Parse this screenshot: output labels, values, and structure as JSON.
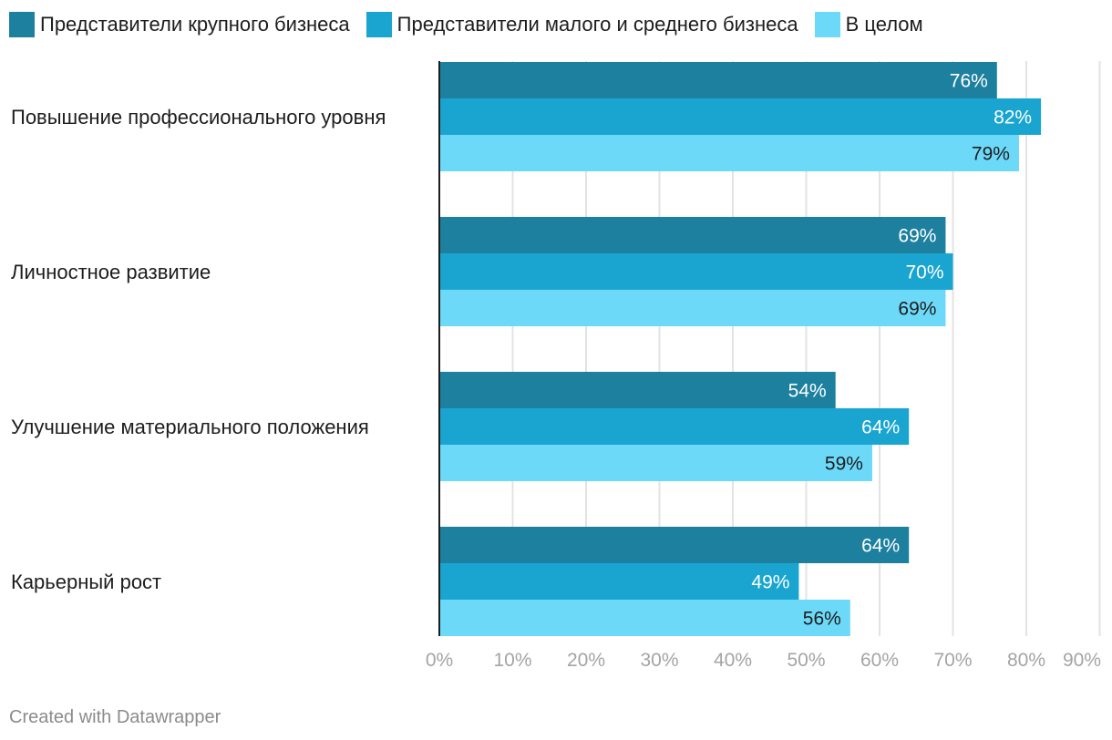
{
  "chart_data": {
    "type": "bar",
    "orientation": "horizontal",
    "categories": [
      "Повышение профессионального уровня",
      "Личностное развитие",
      "Улучшение материального положения",
      "Карьерный рост"
    ],
    "series": [
      {
        "name": "Представители крупного бизнеса",
        "color": "#1e809f",
        "label_color": "#ffffff",
        "values": [
          76,
          69,
          54,
          64
        ]
      },
      {
        "name": "Представители малого и среднего бизнеса",
        "color": "#1aa5d0",
        "label_color": "#ffffff",
        "values": [
          82,
          70,
          64,
          49
        ]
      },
      {
        "name": "В целом",
        "color": "#6dd9f9",
        "label_color": "#1d1d1d",
        "values": [
          79,
          69,
          59,
          56
        ]
      }
    ],
    "value_suffix": "%",
    "xlim": [
      0,
      90
    ],
    "xticks": [
      0,
      10,
      20,
      30,
      40,
      50,
      60,
      70,
      80,
      90
    ],
    "xtick_labels": [
      "0%",
      "10%",
      "20%",
      "30%",
      "40%",
      "50%",
      "60%",
      "70%",
      "80%",
      "90%"
    ],
    "grid": true,
    "legend_position": "top-left",
    "title": "",
    "xlabel": "",
    "ylabel": ""
  },
  "footer": {
    "credit": "Created with Datawrapper"
  }
}
